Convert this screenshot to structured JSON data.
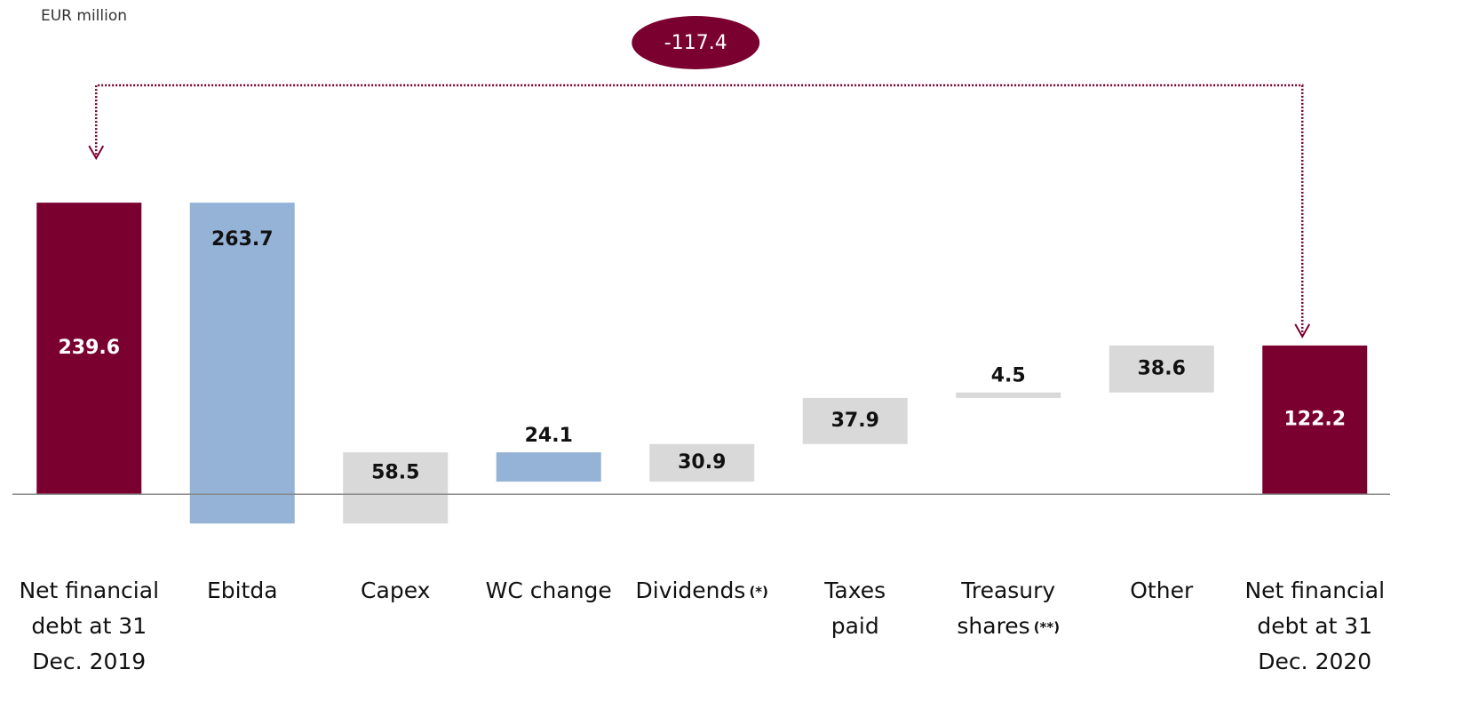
{
  "chart_data": {
    "type": "waterfall",
    "unit_label": "EUR million",
    "categories": [
      [
        "Net financial",
        "debt at 31",
        "Dec. 2019"
      ],
      [
        "Ebitda"
      ],
      [
        "Capex"
      ],
      [
        "WC change"
      ],
      [
        "Dividends"
      ],
      [
        "Taxes",
        "paid"
      ],
      [
        "Treasury",
        "shares"
      ],
      [
        "Other"
      ],
      [
        "Net financial",
        "debt at 31",
        "Dec. 2020"
      ]
    ],
    "category_notes": [
      null,
      null,
      null,
      null,
      "(*)",
      null,
      "(**)",
      null,
      null
    ],
    "measures": [
      "total",
      "decrease",
      "increase",
      "decrease",
      "increase",
      "increase",
      "increase",
      "increase",
      "total"
    ],
    "values": [
      239.6,
      263.7,
      58.5,
      24.1,
      30.9,
      37.9,
      4.5,
      38.6,
      122.2
    ],
    "colors": {
      "total": "#7a0030",
      "decrease": "#95b3d7",
      "increase": "#d9d9d9"
    },
    "annotation": -117.4,
    "ylim": [
      -40,
      320
    ]
  }
}
